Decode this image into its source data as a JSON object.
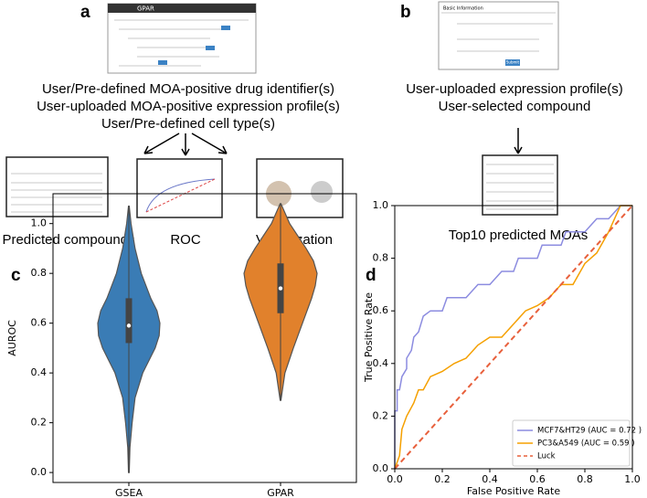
{
  "panel_a": {
    "label": "a",
    "app_title": "GPAR",
    "inputs": [
      "User/Pre-defined MOA-positive drug identifier(s)",
      "User-uploaded MOA-positive expression profile(s)",
      "User/Pre-defined cell type(s)"
    ],
    "outputs": [
      "Predicted compounds",
      "ROC",
      "Visualization"
    ]
  },
  "panel_b": {
    "label": "b",
    "form_title": "Basic Information",
    "button": "Submit",
    "inputs": [
      "User-uploaded expression profile(s)",
      "User-selected compound"
    ],
    "output": "Top10 predicted MOAs"
  },
  "chart_data": [
    {
      "type": "violin",
      "label": "c",
      "ylabel": "AUROC",
      "categories": [
        "GSEA",
        "GPAR"
      ],
      "colors": [
        "#3a7cb5",
        "#e1812c"
      ],
      "stats": [
        {
          "min": 0.0,
          "q1": 0.52,
          "median": 0.59,
          "q3": 0.7,
          "max": 1.07,
          "density_y": [
            0.0,
            0.1,
            0.2,
            0.3,
            0.4,
            0.5,
            0.55,
            0.6,
            0.65,
            0.7,
            0.8,
            0.9,
            1.0,
            1.07
          ],
          "density": [
            0.01,
            0.03,
            0.09,
            0.17,
            0.38,
            0.72,
            0.83,
            0.85,
            0.77,
            0.6,
            0.34,
            0.17,
            0.06,
            0.01
          ]
        },
        {
          "min": 0.29,
          "q1": 0.64,
          "median": 0.74,
          "q3": 0.84,
          "max": 1.08,
          "density_y": [
            0.29,
            0.4,
            0.5,
            0.6,
            0.7,
            0.75,
            0.8,
            0.85,
            0.9,
            1.0,
            1.08
          ],
          "density": [
            0.01,
            0.12,
            0.35,
            0.6,
            0.85,
            0.95,
            1.0,
            0.9,
            0.7,
            0.25,
            0.01
          ]
        }
      ],
      "ylim": [
        -0.04,
        1.12
      ],
      "yticks": [
        {
          "value": 0,
          "label": "0.0"
        },
        0.2,
        0.4,
        0.6,
        0.8,
        {
          "value": 1,
          "label": "1.0"
        }
      ]
    },
    {
      "type": "line",
      "label": "d",
      "xlabel": "False Positive Rate",
      "ylabel": "True Positive Rate",
      "xlim": [
        0,
        1
      ],
      "ylim": [
        0,
        1
      ],
      "xticks": [
        {
          "value": 0,
          "label": "0.0"
        },
        0.2,
        0.4,
        0.6,
        0.8,
        {
          "value": 1,
          "label": "1.0"
        }
      ],
      "yticks": [
        {
          "value": 0,
          "label": "0.0"
        },
        0.2,
        0.4,
        0.6,
        0.8,
        {
          "value": 1,
          "label": "1.0"
        }
      ],
      "legend": "lower right",
      "series": [
        {
          "name": "MCF7&HT29 (AUC = 0.72 )",
          "color": "#8c8ce0",
          "linestyle": "solid",
          "x": [
            0,
            0,
            0.01,
            0.01,
            0.02,
            0.03,
            0.05,
            0.05,
            0.07,
            0.08,
            0.1,
            0.12,
            0.15,
            0.2,
            0.22,
            0.3,
            0.35,
            0.4,
            0.45,
            0.5,
            0.52,
            0.6,
            0.62,
            0.7,
            0.72,
            0.8,
            0.85,
            0.9,
            0.95,
            1.0
          ],
          "values": [
            0,
            0.22,
            0.22,
            0.3,
            0.3,
            0.35,
            0.38,
            0.42,
            0.45,
            0.5,
            0.52,
            0.58,
            0.6,
            0.6,
            0.65,
            0.65,
            0.7,
            0.7,
            0.75,
            0.75,
            0.8,
            0.8,
            0.85,
            0.85,
            0.9,
            0.9,
            0.95,
            0.95,
            1.0,
            1.0
          ]
        },
        {
          "name": "PC3&A549 (AUC = 0.59 )",
          "color": "#f5a000",
          "linestyle": "solid",
          "x": [
            0,
            0.02,
            0.03,
            0.05,
            0.08,
            0.1,
            0.12,
            0.15,
            0.2,
            0.25,
            0.3,
            0.35,
            0.4,
            0.45,
            0.5,
            0.55,
            0.6,
            0.65,
            0.7,
            0.75,
            0.8,
            0.85,
            0.9,
            0.95,
            1.0
          ],
          "values": [
            0,
            0.05,
            0.15,
            0.2,
            0.25,
            0.3,
            0.3,
            0.35,
            0.37,
            0.4,
            0.42,
            0.47,
            0.5,
            0.5,
            0.55,
            0.6,
            0.62,
            0.65,
            0.7,
            0.7,
            0.78,
            0.82,
            0.9,
            1.0,
            1.0
          ]
        },
        {
          "name": "Luck",
          "color": "#e8603c",
          "linestyle": "dashed",
          "x": [
            0,
            1
          ],
          "values": [
            0,
            1
          ]
        }
      ]
    }
  ]
}
